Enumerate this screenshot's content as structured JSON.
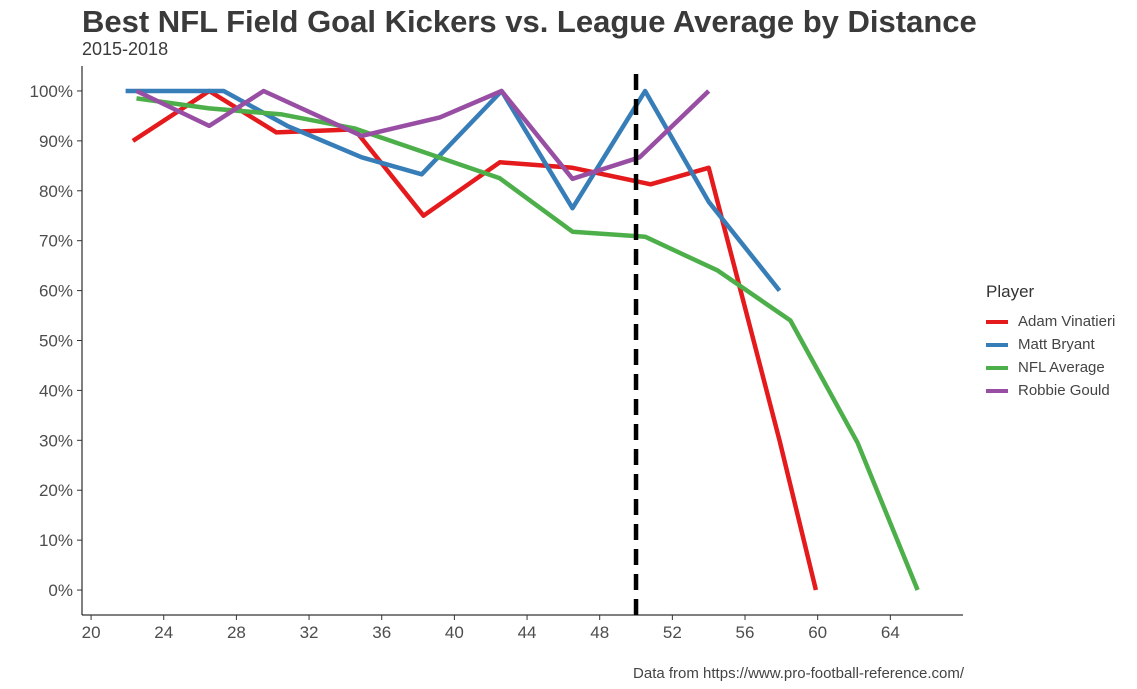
{
  "chart_data": {
    "type": "line",
    "title": "Best NFL Field Goal Kickers vs. League Average by Distance",
    "subtitle": "2015-2018",
    "caption": "Data from https://www.pro-football-reference.com/",
    "xlabel": "",
    "ylabel": "",
    "xlim": [
      19.5,
      68
    ],
    "ylim": [
      -5,
      105
    ],
    "x_ticks": [
      20,
      24,
      28,
      32,
      36,
      40,
      44,
      48,
      52,
      56,
      60,
      64
    ],
    "x_tick_labels": [
      "20",
      "24",
      "28",
      "32",
      "36",
      "40",
      "44",
      "48",
      "52",
      "56",
      "60",
      "64"
    ],
    "y_ticks": [
      0,
      10,
      20,
      30,
      40,
      50,
      60,
      70,
      80,
      90,
      100
    ],
    "y_tick_labels": [
      "0%",
      "10%",
      "20%",
      "30%",
      "40%",
      "50%",
      "60%",
      "70%",
      "80%",
      "90%",
      "100%"
    ],
    "reference_line": {
      "x": 50,
      "style": "dashed",
      "color": "#000000"
    },
    "grid": false,
    "legend": {
      "title": "Player",
      "position": "right"
    },
    "series": [
      {
        "name": "Adam Vinatieri",
        "color": "#e41a1c",
        "x": [
          22.3,
          26.5,
          30.2,
          34.5,
          38.3,
          42.5,
          46.5,
          50.8,
          54.0,
          57.9,
          59.9
        ],
        "y": [
          90,
          100,
          91.7,
          92.3,
          75,
          85.7,
          84.6,
          81.3,
          84.6,
          30,
          0
        ]
      },
      {
        "name": "Matt Bryant",
        "color": "#377eb8",
        "x": [
          21.9,
          27.3,
          30.8,
          34.9,
          38.2,
          42.6,
          46.5,
          50.5,
          54.0,
          57.9
        ],
        "y": [
          100,
          100,
          93,
          86.7,
          83.3,
          100,
          76.5,
          100,
          77.8,
          60
        ]
      },
      {
        "name": "NFL Average",
        "color": "#4daf4a",
        "x": [
          22.5,
          26.5,
          30.5,
          34.5,
          38.5,
          42.5,
          46.5,
          50.5,
          54.5,
          58.5,
          62.2,
          65.5
        ],
        "y": [
          98.5,
          96.5,
          95.3,
          92.5,
          87.5,
          82.5,
          71.8,
          70.8,
          64,
          54,
          29.5,
          0
        ]
      },
      {
        "name": "Robbie Gould",
        "color": "#984ea3",
        "x": [
          22.5,
          26.5,
          29.5,
          34.9,
          39.2,
          42.6,
          46.5,
          50.2,
          54.0
        ],
        "y": [
          100,
          93,
          100,
          91,
          94.7,
          100,
          82.4,
          86.7,
          100
        ]
      }
    ]
  }
}
